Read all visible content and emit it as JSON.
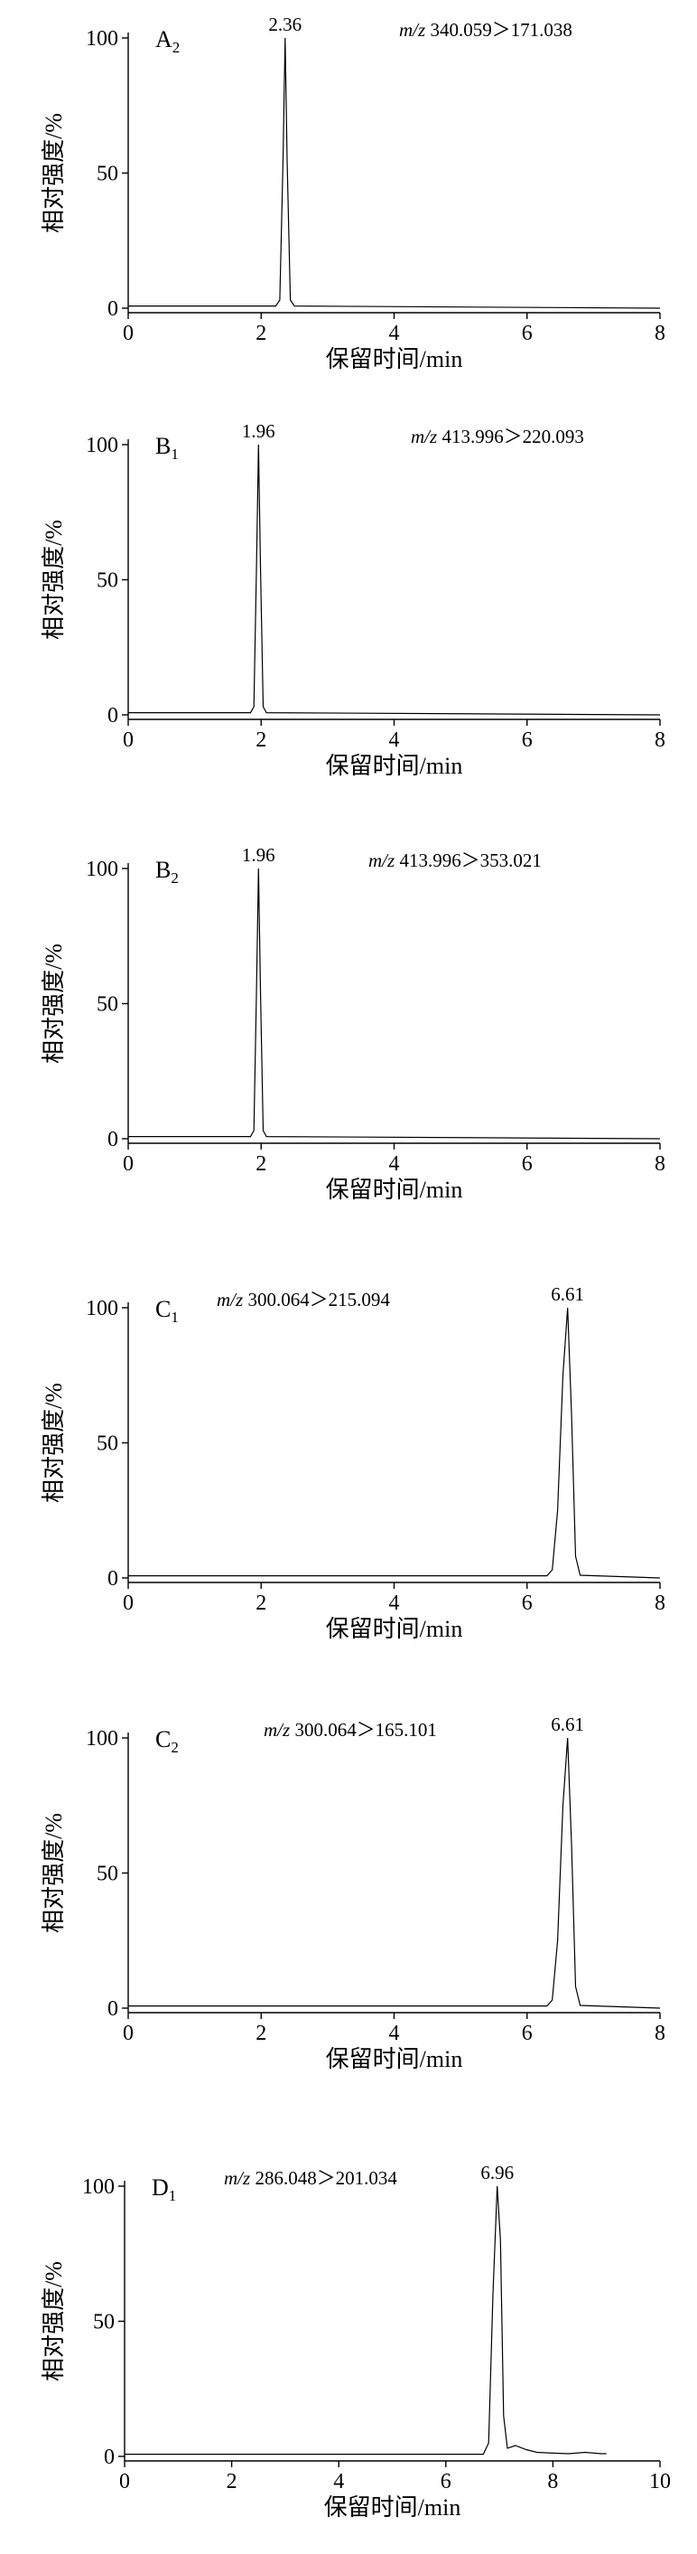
{
  "figure": {
    "y_axis_title": "相对强度/%",
    "x_axis_title": "保留时间/min"
  },
  "chart_data": [
    {
      "type": "line",
      "panel": "A",
      "panel_sub": "2",
      "mz_prefix": "m/z",
      "mz_transition": "340.059＞171.038",
      "xlabel": "保留时间/min",
      "ylabel": "相对强度/%",
      "xlim": [
        0,
        8
      ],
      "ylim": [
        0,
        100
      ],
      "x_ticks": [
        "0",
        "2",
        "4",
        "6",
        "8"
      ],
      "y_ticks": [
        "0",
        "50",
        "100"
      ],
      "peak_rt": 2.36,
      "peak_label": "2.36",
      "x": [
        0,
        2.22,
        2.28,
        2.33,
        2.36,
        2.39,
        2.44,
        2.5,
        8
      ],
      "y": [
        0.8,
        0.8,
        3,
        55,
        100,
        55,
        3,
        0.8,
        0
      ]
    },
    {
      "type": "line",
      "panel": "B",
      "panel_sub": "1",
      "mz_prefix": "m/z",
      "mz_transition": "413.996＞220.093",
      "xlabel": "保留时间/min",
      "ylabel": "相对强度/%",
      "xlim": [
        0,
        8
      ],
      "ylim": [
        0,
        100
      ],
      "x_ticks": [
        "0",
        "2",
        "4",
        "6",
        "8"
      ],
      "y_ticks": [
        "0",
        "50",
        "100"
      ],
      "peak_rt": 1.96,
      "peak_label": "1.96",
      "x": [
        0,
        1.84,
        1.89,
        1.93,
        1.96,
        1.99,
        2.03,
        2.08,
        8
      ],
      "y": [
        0.8,
        0.8,
        3,
        55,
        100,
        55,
        3,
        0.8,
        0
      ]
    },
    {
      "type": "line",
      "panel": "B",
      "panel_sub": "2",
      "mz_prefix": "m/z",
      "mz_transition": "413.996＞353.021",
      "xlabel": "保留时间/min",
      "ylabel": "相对强度/%",
      "xlim": [
        0,
        8
      ],
      "ylim": [
        0,
        100
      ],
      "x_ticks": [
        "0",
        "2",
        "4",
        "6",
        "8"
      ],
      "y_ticks": [
        "0",
        "50",
        "100"
      ],
      "peak_rt": 1.96,
      "peak_label": "1.96",
      "x": [
        0,
        1.84,
        1.89,
        1.93,
        1.96,
        1.99,
        2.03,
        2.08,
        8
      ],
      "y": [
        0.8,
        0.8,
        3,
        55,
        100,
        55,
        3,
        0.8,
        0
      ]
    },
    {
      "type": "line",
      "panel": "C",
      "panel_sub": "1",
      "mz_prefix": "m/z",
      "mz_transition": "300.064＞215.094",
      "xlabel": "保留时间/min",
      "ylabel": "相对强度/%",
      "xlim": [
        0,
        8
      ],
      "ylim": [
        0,
        100
      ],
      "x_ticks": [
        "0",
        "2",
        "4",
        "6",
        "8"
      ],
      "y_ticks": [
        "0",
        "50",
        "100"
      ],
      "peak_rt": 6.61,
      "peak_label": "6.61",
      "x": [
        0,
        6.3,
        6.38,
        6.46,
        6.54,
        6.61,
        6.67,
        6.73,
        6.8,
        8
      ],
      "y": [
        0.8,
        0.8,
        3,
        25,
        75,
        100,
        60,
        8,
        1,
        0
      ]
    },
    {
      "type": "line",
      "panel": "C",
      "panel_sub": "2",
      "mz_prefix": "m/z",
      "mz_transition": "300.064＞165.101",
      "xlabel": "保留时间/min",
      "ylabel": "相对强度/%",
      "xlim": [
        0,
        8
      ],
      "ylim": [
        0,
        100
      ],
      "x_ticks": [
        "0",
        "2",
        "4",
        "6",
        "8"
      ],
      "y_ticks": [
        "0",
        "50",
        "100"
      ],
      "peak_rt": 6.61,
      "peak_label": "6.61",
      "x": [
        0,
        6.3,
        6.38,
        6.46,
        6.54,
        6.61,
        6.67,
        6.73,
        6.8,
        8
      ],
      "y": [
        0.8,
        0.8,
        3,
        25,
        75,
        100,
        60,
        8,
        1,
        0
      ]
    },
    {
      "type": "line",
      "panel": "D",
      "panel_sub": "1",
      "mz_prefix": "m/z",
      "mz_transition": "286.048＞201.034",
      "xlabel": "保留时间/min",
      "ylabel": "相对强度/%",
      "xlim": [
        0,
        10
      ],
      "ylim": [
        0,
        100
      ],
      "x_ticks": [
        "0",
        "2",
        "4",
        "6",
        "8",
        "10"
      ],
      "y_ticks": [
        "0",
        "50",
        "100"
      ],
      "peak_rt": 6.96,
      "peak_label": "6.96",
      "x": [
        0,
        6.7,
        6.8,
        6.88,
        6.96,
        7.02,
        7.08,
        7.15,
        7.3,
        7.5,
        7.7,
        8.0,
        8.3,
        8.6,
        8.9,
        9.0
      ],
      "y": [
        0.8,
        0.8,
        5,
        60,
        100,
        80,
        15,
        3,
        4,
        2.5,
        1.5,
        1.2,
        1.0,
        1.5,
        1.0,
        1.0
      ]
    }
  ]
}
